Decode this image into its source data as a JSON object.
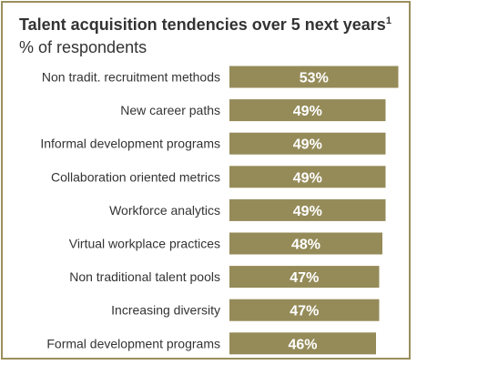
{
  "chart_data": {
    "type": "bar",
    "orientation": "horizontal",
    "title": "Talent acquisition  tendencies over 5 next years",
    "title_superscript": "1",
    "subtitle": "% of respondents",
    "categories": [
      "Non tradit. recruitment methods",
      "New career paths",
      "Informal development programs",
      "Collaboration oriented metrics",
      "Workforce analytics",
      "Virtual workplace practices",
      "Non traditional talent pools",
      "Increasing diversity",
      "Formal development programs"
    ],
    "values": [
      53,
      49,
      49,
      49,
      49,
      48,
      47,
      47,
      46
    ],
    "value_labels": [
      "53%",
      "49%",
      "49%",
      "49%",
      "49%",
      "48%",
      "47%",
      "47%",
      "46%"
    ],
    "unit": "%",
    "grid": false,
    "legend": "none",
    "colors": {
      "bar": "#958b59",
      "frame": "#9a8f5c",
      "value_text": "#ffffff",
      "text": "#333333"
    }
  }
}
